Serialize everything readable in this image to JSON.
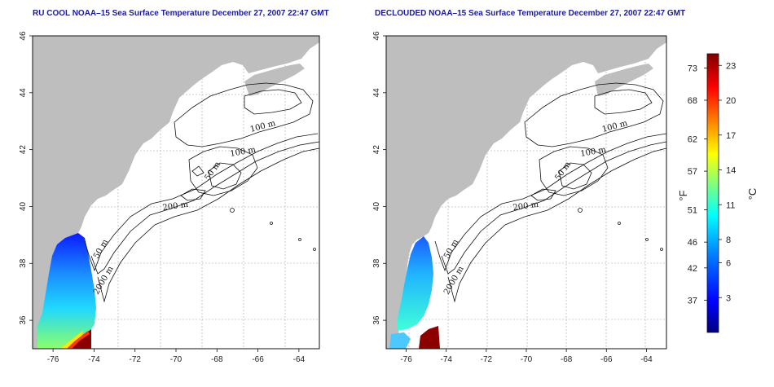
{
  "map1": {
    "title": "RU COOL NOAA–15 Sea Surface Temperature December 27, 2007 22:47 GMT",
    "contours": [
      "100 m",
      "100 m",
      "50 m",
      "200 m",
      "50 m",
      "2000 m"
    ]
  },
  "map2": {
    "title": "DECLOUDED NOAA–15 Sea Surface Temperature December 27, 2007 22:47 GMT",
    "contours": [
      "100 m",
      "100 m",
      "50 m",
      "200 m",
      "50 m",
      "2000 m"
    ]
  },
  "axes": {
    "lon_ticks": [
      "-76",
      "-74",
      "-72",
      "-70",
      "-68",
      "-66",
      "-64"
    ],
    "lat_ticks": [
      "36",
      "38",
      "40",
      "42",
      "44",
      "46"
    ],
    "lon_range": [
      -77,
      -63
    ],
    "lat_range": [
      35,
      46
    ],
    "grid": true
  },
  "colorbar": {
    "f_label": "°F",
    "c_label": "°C",
    "f_ticks": [
      "73",
      "68",
      "62",
      "57",
      "51",
      "46",
      "42",
      "37"
    ],
    "c_ticks": [
      "23",
      "20",
      "17",
      "14",
      "11",
      "8",
      "6",
      "3"
    ],
    "colors": [
      "#00007f",
      "#0000ff",
      "#007fff",
      "#00ffff",
      "#7fff7f",
      "#ffff00",
      "#ff7f00",
      "#ff0000",
      "#7f0000"
    ]
  },
  "colors": {
    "land": "#bebebe",
    "title": "#1a1a9c"
  }
}
